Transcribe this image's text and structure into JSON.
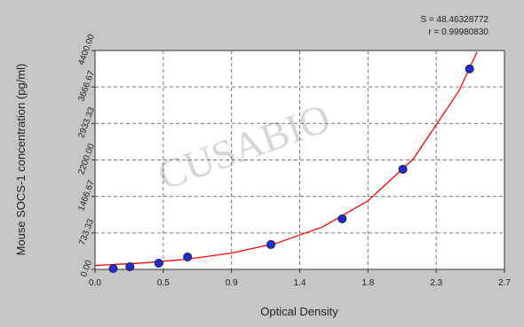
{
  "chart_data": {
    "type": "scatter",
    "stats": [
      "S = 48.46328772",
      "r = 0.99980830"
    ],
    "watermark": "CUSABIO",
    "x_label": "Optical Density",
    "y_label": "Mouse SOCS-1 concentration (pg/ml)",
    "series": [
      {
        "color": "#1f2bd8",
        "x": [
          0.12,
          0.23,
          0.42,
          0.61,
          1.16,
          1.63,
          2.03,
          2.47
        ],
        "values": [
          18,
          54,
          125,
          250,
          500,
          1016,
          2014,
          4030
        ]
      },
      {
        "color": "#ff0000",
        "line": true,
        "x": [
          0,
          0.3,
          0.6,
          0.9,
          1.2,
          1.5,
          1.8,
          2.1,
          2.4,
          2.52
        ],
        "values": [
          78,
          126,
          203,
          328,
          529,
          854,
          1378,
          2224,
          3590,
          4375
        ]
      }
    ],
    "xlim": [
      0,
      2.7
    ],
    "xticks": [
      {
        "value": 0,
        "label": "0.0"
      },
      {
        "value": 0.45,
        "label": "0.5"
      },
      {
        "value": 0.9,
        "label": "0.9"
      },
      {
        "value": 1.35,
        "label": "1.4"
      },
      {
        "value": 1.8,
        "label": "1.8"
      },
      {
        "value": 2.25,
        "label": "2.3"
      },
      {
        "value": 2.7,
        "label": "2.7"
      }
    ],
    "ylim": [
      0,
      4400
    ],
    "yticks": [
      {
        "value": 0,
        "label": "0.00"
      },
      {
        "value": 733.33,
        "label": "733.33"
      },
      {
        "value": 1466.67,
        "label": "1466.67"
      },
      {
        "value": 2200,
        "label": "2200.00"
      },
      {
        "value": 2933.33,
        "label": "2933.33"
      },
      {
        "value": 3666.67,
        "label": "3666.67"
      },
      {
        "value": 4400,
        "label": "4400.00"
      }
    ],
    "grid": true
  }
}
